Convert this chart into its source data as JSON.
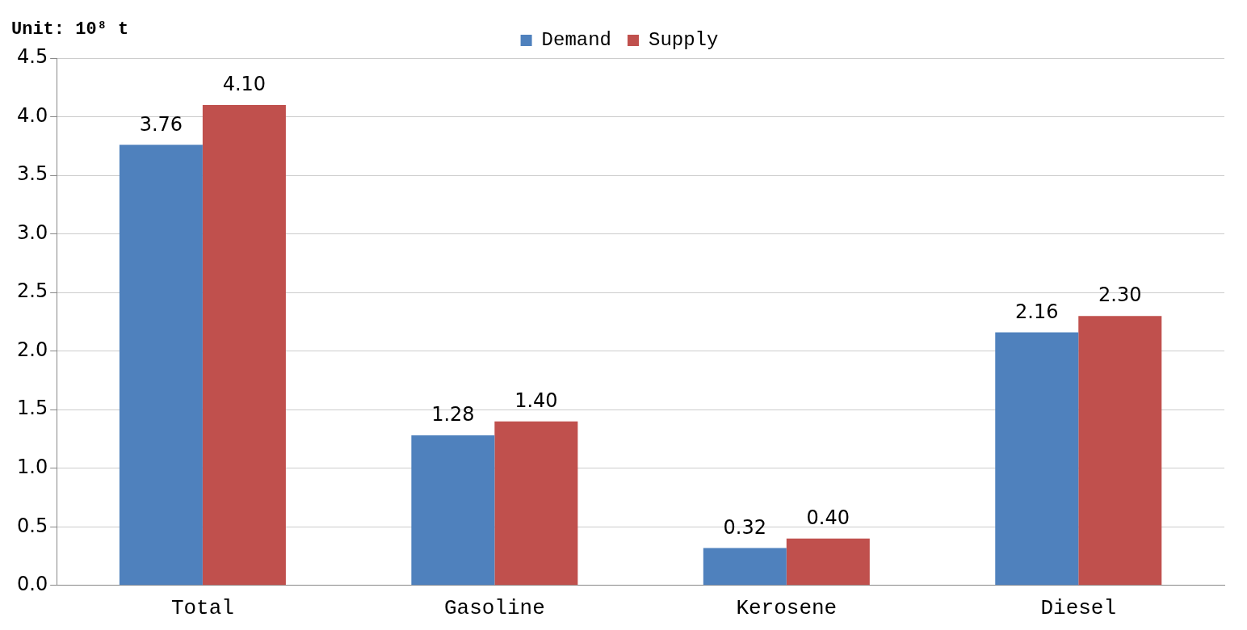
{
  "chart_data": {
    "type": "bar",
    "ylabel": "Unit: 10⁸ t",
    "categories": [
      "Total",
      "Gasoline",
      "Kerosene",
      "Diesel"
    ],
    "series": [
      {
        "name": "Demand",
        "color": "#4f81bd",
        "values": [
          3.76,
          1.28,
          0.32,
          2.16
        ]
      },
      {
        "name": "Supply",
        "color": "#c0504d",
        "values": [
          4.1,
          1.4,
          0.4,
          2.3
        ]
      }
    ],
    "value_labels": [
      [
        "3.76",
        "1.28",
        "0.32",
        "2.16"
      ],
      [
        "4.10",
        "1.40",
        "0.40",
        "2.30"
      ]
    ],
    "ylim": [
      0,
      4.5
    ],
    "yticks": [
      {
        "value": 0,
        "label": "0.0"
      },
      {
        "value": 0.5,
        "label": "0.5"
      },
      {
        "value": 1,
        "label": "1.0"
      },
      {
        "value": 1.5,
        "label": "1.5"
      },
      {
        "value": 2,
        "label": "2.0"
      },
      {
        "value": 2.5,
        "label": "2.5"
      },
      {
        "value": 3,
        "label": "3.0"
      },
      {
        "value": 3.5,
        "label": "3.5"
      },
      {
        "value": 4,
        "label": "4.0"
      },
      {
        "value": 4.5,
        "label": "4.5"
      }
    ],
    "grid": "y",
    "legend": "top"
  }
}
